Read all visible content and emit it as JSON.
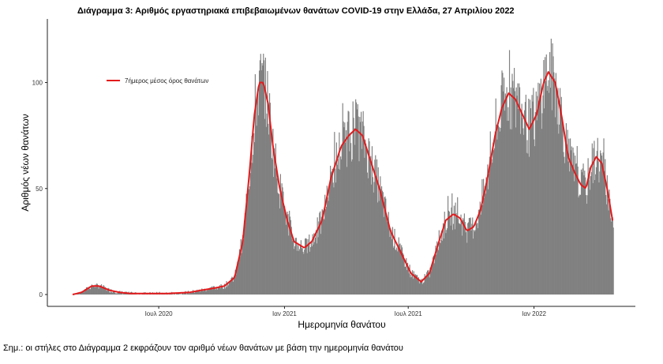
{
  "page": {
    "title": "Διάγραμμα 3: Αριθμός εργαστηριακά επιβεβαιωμένων θανάτων COVID-19 στην Ελλάδα, 27 Απριλίου 2022",
    "footnote": "Σημ.: οι στήλες στο Διάγραμμα 2 εκφράζουν τον αριθμό νέων θανάτων με βάση την ημερομηνία θανάτου"
  },
  "chart_data": {
    "type": "bar",
    "title": "Διάγραμμα 3: Αριθμός εργαστηριακά επιβεβαιωμένων θανάτων COVID-19 στην Ελλάδα, 27 Απριλίου 2022",
    "xlabel": "Ημερομηνία θανάτου",
    "ylabel": "Αριθμός νέων θανάτων",
    "x_range": [
      "2020-02-26",
      "2022-04-27"
    ],
    "ylim": [
      0,
      130
    ],
    "y_ticks": [
      0,
      50,
      100
    ],
    "x_ticks": [
      {
        "date": "2020-07-01",
        "label": "Ιουλ 2020"
      },
      {
        "date": "2021-01-01",
        "label": "Ιαν 2021"
      },
      {
        "date": "2021-07-01",
        "label": "Ιουλ 2021"
      },
      {
        "date": "2022-01-01",
        "label": "Ιαν 2022"
      }
    ],
    "bar_color": "#808080",
    "line_color": "#e41a1c",
    "grid": false,
    "legend": {
      "position": "top-left",
      "entries": [
        {
          "name": "7ήμερος μέσος όρος θανάτων",
          "color": "#e41a1c"
        }
      ]
    },
    "series": [
      {
        "name": "7ήμερος μέσος όρος θανάτων",
        "kind": "line",
        "points": [
          [
            "2020-02-26",
            0
          ],
          [
            "2020-03-10",
            1
          ],
          [
            "2020-03-25",
            4
          ],
          [
            "2020-04-05",
            4
          ],
          [
            "2020-04-20",
            2
          ],
          [
            "2020-05-05",
            1
          ],
          [
            "2020-05-20",
            0.5
          ],
          [
            "2020-06-15",
            0.5
          ],
          [
            "2020-07-15",
            0.5
          ],
          [
            "2020-08-15",
            1
          ],
          [
            "2020-09-01",
            2
          ],
          [
            "2020-09-20",
            3
          ],
          [
            "2020-10-05",
            4
          ],
          [
            "2020-10-20",
            8
          ],
          [
            "2020-11-01",
            25
          ],
          [
            "2020-11-10",
            55
          ],
          [
            "2020-11-18",
            85
          ],
          [
            "2020-11-25",
            100
          ],
          [
            "2020-12-01",
            100
          ],
          [
            "2020-12-08",
            90
          ],
          [
            "2020-12-15",
            70
          ],
          [
            "2020-12-25",
            50
          ],
          [
            "2021-01-05",
            35
          ],
          [
            "2021-01-15",
            25
          ],
          [
            "2021-01-30",
            22
          ],
          [
            "2021-02-10",
            25
          ],
          [
            "2021-02-25",
            35
          ],
          [
            "2021-03-10",
            55
          ],
          [
            "2021-03-25",
            70
          ],
          [
            "2021-04-05",
            75
          ],
          [
            "2021-04-15",
            78
          ],
          [
            "2021-04-25",
            75
          ],
          [
            "2021-05-05",
            65
          ],
          [
            "2021-05-20",
            50
          ],
          [
            "2021-06-05",
            30
          ],
          [
            "2021-06-20",
            20
          ],
          [
            "2021-07-05",
            10
          ],
          [
            "2021-07-20",
            6
          ],
          [
            "2021-08-01",
            10
          ],
          [
            "2021-08-15",
            25
          ],
          [
            "2021-08-25",
            35
          ],
          [
            "2021-09-05",
            38
          ],
          [
            "2021-09-15",
            36
          ],
          [
            "2021-09-25",
            30
          ],
          [
            "2021-10-05",
            32
          ],
          [
            "2021-10-15",
            40
          ],
          [
            "2021-10-25",
            55
          ],
          [
            "2021-11-05",
            75
          ],
          [
            "2021-11-15",
            88
          ],
          [
            "2021-11-25",
            95
          ],
          [
            "2021-12-05",
            92
          ],
          [
            "2021-12-15",
            85
          ],
          [
            "2021-12-25",
            78
          ],
          [
            "2022-01-05",
            85
          ],
          [
            "2022-01-15",
            100
          ],
          [
            "2022-01-22",
            105
          ],
          [
            "2022-02-01",
            100
          ],
          [
            "2022-02-10",
            85
          ],
          [
            "2022-02-20",
            65
          ],
          [
            "2022-03-01",
            58
          ],
          [
            "2022-03-10",
            52
          ],
          [
            "2022-03-18",
            50
          ],
          [
            "2022-03-25",
            60
          ],
          [
            "2022-04-02",
            65
          ],
          [
            "2022-04-10",
            62
          ],
          [
            "2022-04-18",
            50
          ],
          [
            "2022-04-27",
            33
          ]
        ]
      }
    ]
  }
}
